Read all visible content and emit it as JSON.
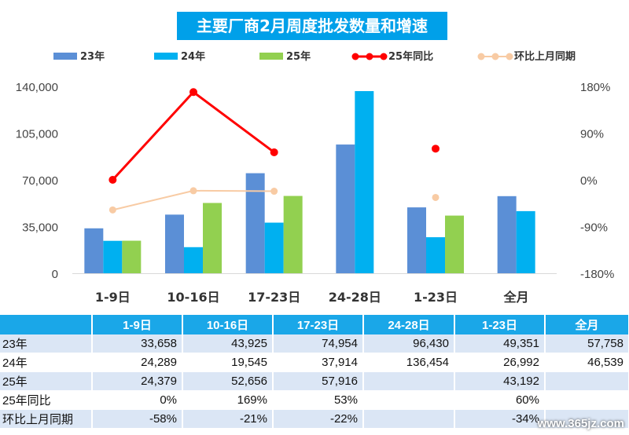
{
  "chart_data": {
    "type": "bar",
    "title": "主要厂商2月周度批发数量和增速",
    "categories": [
      "1-9日",
      "10-16日",
      "17-23日",
      "24-28日",
      "1-23日",
      "全月"
    ],
    "series": [
      {
        "name": "23年",
        "kind": "bar",
        "color": "#5b8fd6",
        "values": [
          33658,
          43925,
          74954,
          96430,
          49351,
          57758
        ]
      },
      {
        "name": "24年",
        "kind": "bar",
        "color": "#00b0f0",
        "values": [
          24289,
          19545,
          37914,
          136454,
          26992,
          46539
        ]
      },
      {
        "name": "25年",
        "kind": "bar",
        "color": "#92d050",
        "values": [
          24379,
          52656,
          57916,
          null,
          43192,
          null
        ]
      },
      {
        "name": "25年同比",
        "kind": "line",
        "axis": "right",
        "color": "#ff0000",
        "values": [
          0,
          169,
          53,
          null,
          60,
          null
        ]
      },
      {
        "name": "环比上月同期",
        "kind": "line",
        "axis": "right",
        "color": "#f8cba4",
        "values": [
          -58,
          -21,
          -22,
          null,
          -34,
          null
        ]
      }
    ],
    "ylim": [
      0,
      140000
    ],
    "yticks": [
      "0",
      "35,000",
      "70,000",
      "105,000",
      "140,000"
    ],
    "y2lim": [
      -180,
      180
    ],
    "y2ticks": [
      "-180%",
      "-90%",
      "0%",
      "90%",
      "180%"
    ],
    "legend_position": "top",
    "grid": false
  },
  "table": {
    "header": [
      "",
      "1-9日",
      "10-16日",
      "17-23日",
      "24-28日",
      "1-23日",
      "全月"
    ],
    "rows": [
      {
        "label": "23年",
        "cells": [
          "33,658",
          "43,925",
          "74,954",
          "96,430",
          "49,351",
          "57,758"
        ]
      },
      {
        "label": "24年",
        "cells": [
          "24,289",
          "19,545",
          "37,914",
          "136,454",
          "26,992",
          "46,539"
        ]
      },
      {
        "label": "25年",
        "cells": [
          "24,379",
          "52,656",
          "57,916",
          "",
          "43,192",
          ""
        ]
      },
      {
        "label": "25年同比",
        "cells": [
          "0%",
          "169%",
          "53%",
          "",
          "60%",
          ""
        ]
      },
      {
        "label": "环比上月同期",
        "cells": [
          "-58%",
          "-21%",
          "-22%",
          "",
          "-34%",
          ""
        ]
      }
    ]
  },
  "watermark": "www.365jz.com"
}
